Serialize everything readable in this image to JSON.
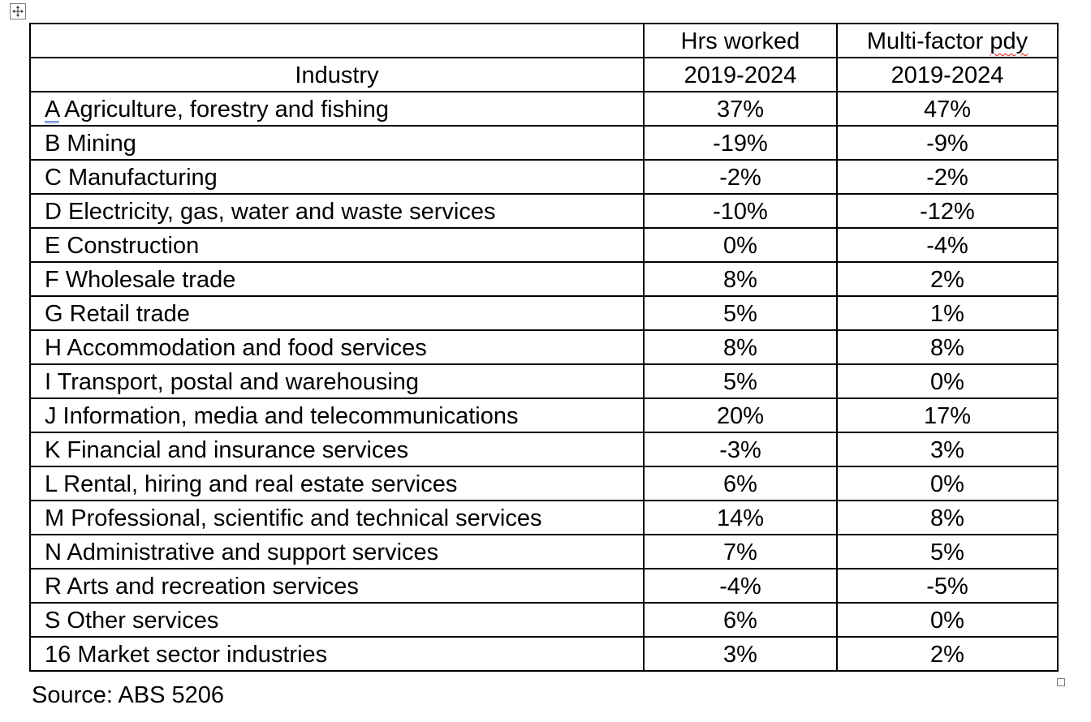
{
  "table": {
    "headers": {
      "industry": "Industry",
      "hrs_line1": "Hrs worked",
      "hrs_line2": "2019-2024",
      "mfp_line1_a": "Multi-factor ",
      "mfp_line1_b": "pdy",
      "mfp_line2": "2019-2024"
    },
    "rows": [
      {
        "code": "A",
        "name": " Agriculture, forestry and fishing",
        "hrs": "37%",
        "mfp": "47%"
      },
      {
        "code": "B",
        "name": " Mining",
        "hrs": "-19%",
        "mfp": "-9%"
      },
      {
        "code": "C",
        "name": " Manufacturing",
        "hrs": "-2%",
        "mfp": "-2%"
      },
      {
        "code": "D",
        "name": " Electricity, gas, water and waste services",
        "hrs": "-10%",
        "mfp": "-12%"
      },
      {
        "code": "E",
        "name": " Construction",
        "hrs": "0%",
        "mfp": "-4%"
      },
      {
        "code": "F",
        "name": " Wholesale trade",
        "hrs": "8%",
        "mfp": "2%"
      },
      {
        "code": "G",
        "name": " Retail trade",
        "hrs": "5%",
        "mfp": "1%"
      },
      {
        "code": "H",
        "name": " Accommodation and food services",
        "hrs": "8%",
        "mfp": "8%"
      },
      {
        "code": "I",
        "name": " Transport, postal and warehousing",
        "hrs": "5%",
        "mfp": "0%"
      },
      {
        "code": "J",
        "name": " Information, media and telecommunications",
        "hrs": "20%",
        "mfp": "17%"
      },
      {
        "code": "K",
        "name": " Financial and insurance services",
        "hrs": "-3%",
        "mfp": "3%"
      },
      {
        "code": "L",
        "name": " Rental, hiring and real estate services",
        "hrs": "6%",
        "mfp": "0%"
      },
      {
        "code": "M",
        "name": " Professional, scientific and technical services",
        "hrs": "14%",
        "mfp": "8%"
      },
      {
        "code": "N",
        "name": " Administrative and support services",
        "hrs": "7%",
        "mfp": "5%"
      },
      {
        "code": "R",
        "name": " Arts and recreation services",
        "hrs": "-4%",
        "mfp": "-5%"
      },
      {
        "code": "S",
        "name": " Other services",
        "hrs": "6%",
        "mfp": "0%"
      },
      {
        "code": "16",
        "name": " Market sector industries",
        "hrs": "3%",
        "mfp": "2%"
      }
    ]
  },
  "source": "Source: ABS 5206",
  "icons": {
    "move_handle": "table-move-icon",
    "resize_handle": "table-resize-handle-icon"
  },
  "colors": {
    "spell_squiggle": "#dd1111",
    "grammar_underline": "#4a6fd0"
  }
}
